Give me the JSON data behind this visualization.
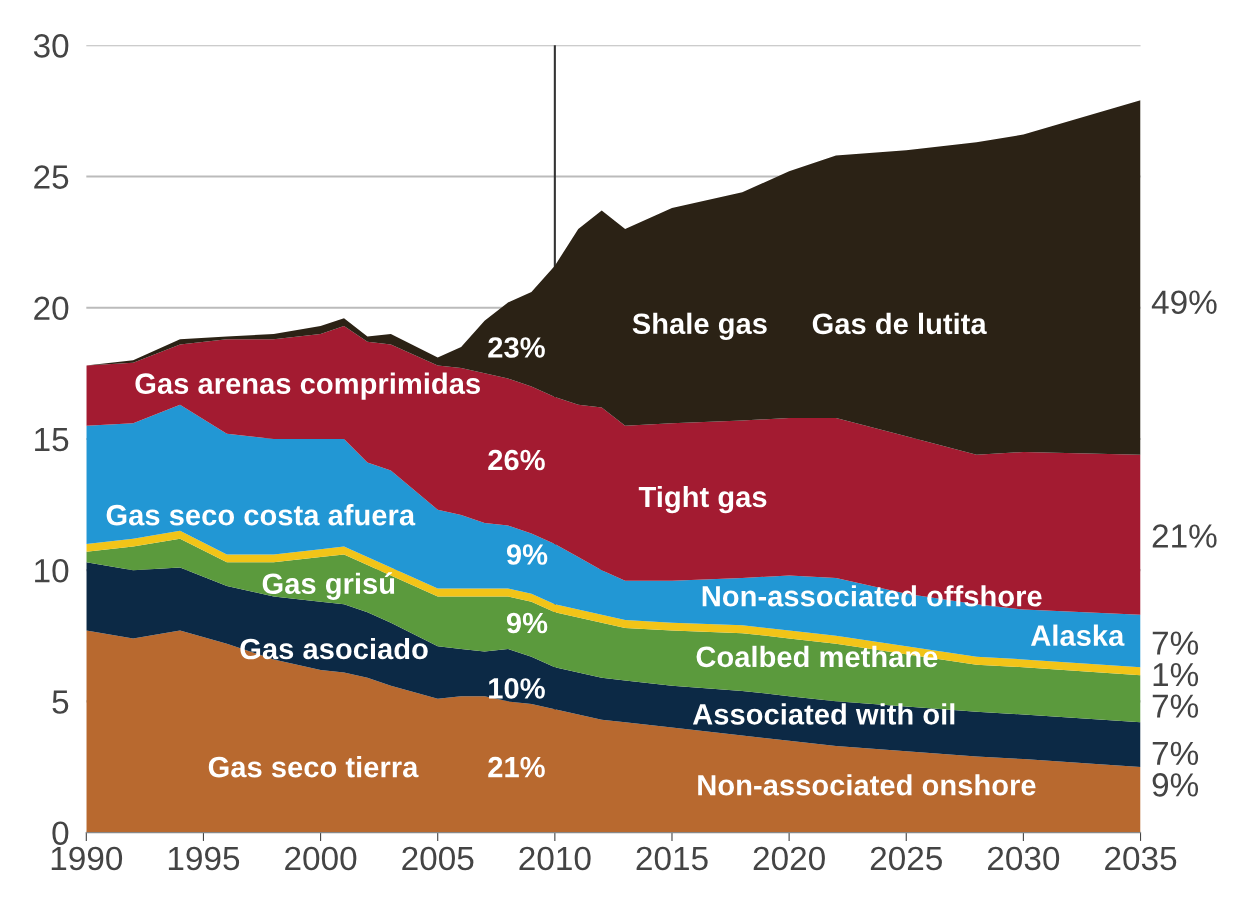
{
  "chart_data": {
    "type": "area",
    "stacked": true,
    "x": [
      1990,
      1992,
      1994,
      1996,
      1998,
      2000,
      2001,
      2002,
      2003,
      2005,
      2006,
      2007,
      2008,
      2009,
      2010,
      2011,
      2012,
      2013,
      2015,
      2018,
      2020,
      2022,
      2025,
      2028,
      2030,
      2035
    ],
    "series": [
      {
        "color": "#b8692f",
        "values": [
          7.7,
          7.4,
          7.7,
          7.2,
          6.6,
          6.2,
          6.1,
          5.9,
          5.6,
          5.1,
          5.2,
          5.2,
          5.0,
          4.9,
          4.7,
          4.5,
          4.3,
          4.2,
          4.0,
          3.7,
          3.5,
          3.3,
          3.1,
          2.9,
          2.8,
          2.5
        ]
      },
      {
        "color": "#0c2945",
        "values": [
          2.6,
          2.6,
          2.4,
          2.2,
          2.4,
          2.6,
          2.6,
          2.5,
          2.4,
          2.0,
          1.8,
          1.7,
          2.0,
          1.8,
          1.6,
          1.6,
          1.6,
          1.6,
          1.6,
          1.7,
          1.7,
          1.7,
          1.7,
          1.7,
          1.7,
          1.7
        ]
      },
      {
        "color": "#5b9a3d",
        "values": [
          0.4,
          0.9,
          1.1,
          0.9,
          1.3,
          1.7,
          1.9,
          1.8,
          1.8,
          1.9,
          2.0,
          2.1,
          2.0,
          2.1,
          2.1,
          2.1,
          2.1,
          2.0,
          2.1,
          2.2,
          2.2,
          2.2,
          2.0,
          1.8,
          1.8,
          1.8
        ]
      },
      {
        "color": "#f2c418",
        "values": [
          0.3,
          0.3,
          0.3,
          0.3,
          0.3,
          0.3,
          0.3,
          0.3,
          0.3,
          0.3,
          0.3,
          0.3,
          0.3,
          0.3,
          0.3,
          0.3,
          0.3,
          0.3,
          0.3,
          0.3,
          0.3,
          0.3,
          0.3,
          0.3,
          0.3,
          0.3
        ]
      },
      {
        "color": "#2297d4",
        "values": [
          4.5,
          4.4,
          4.8,
          4.6,
          4.4,
          4.2,
          4.1,
          3.6,
          3.7,
          3.0,
          2.8,
          2.5,
          2.4,
          2.3,
          2.3,
          2.0,
          1.7,
          1.5,
          1.6,
          1.8,
          2.1,
          2.2,
          2.0,
          2.0,
          1.9,
          2.0
        ]
      },
      {
        "color": "#a31b31",
        "values": [
          2.3,
          2.3,
          2.3,
          3.6,
          3.8,
          4.0,
          4.3,
          4.6,
          4.8,
          5.5,
          5.6,
          5.7,
          5.6,
          5.6,
          5.6,
          5.8,
          6.2,
          5.9,
          6.0,
          6.0,
          6.0,
          6.1,
          6.0,
          5.7,
          6.0,
          6.1
        ]
      },
      {
        "color": "#2b2215",
        "values": [
          0.0,
          0.1,
          0.2,
          0.1,
          0.2,
          0.3,
          0.3,
          0.2,
          0.4,
          0.3,
          0.8,
          2.0,
          2.9,
          3.6,
          5.0,
          6.7,
          7.5,
          7.5,
          8.2,
          8.7,
          9.4,
          10.0,
          10.9,
          11.9,
          12.1,
          13.5
        ]
      }
    ],
    "xlim": [
      1990,
      2035
    ],
    "xticks": [
      1990,
      1995,
      2000,
      2005,
      2010,
      2015,
      2020,
      2025,
      2030,
      2035
    ],
    "ylim": [
      0,
      30
    ],
    "yticks": [
      0,
      5,
      10,
      15,
      20,
      25,
      30
    ],
    "grid": "y",
    "ref_lines": [
      {
        "axis": "x",
        "value": 2010,
        "color": "#333333"
      }
    ],
    "annotations": [
      "Gas arenas comprimidas",
      "Gas seco costa afuera",
      "Gas grisú",
      "Gas asociado",
      "Gas seco tierra",
      "Shale gas",
      "Gas de lutita",
      "Tight gas",
      "Non-associated offshore",
      "Alaska",
      "Coalbed methane",
      "Associated with oil",
      "Non-associated onshore",
      "23%",
      "26%",
      "9%",
      "9%",
      "10%",
      "21%",
      "49%",
      "21%",
      "7%",
      "1%",
      "7%",
      "7%",
      "9%"
    ]
  }
}
